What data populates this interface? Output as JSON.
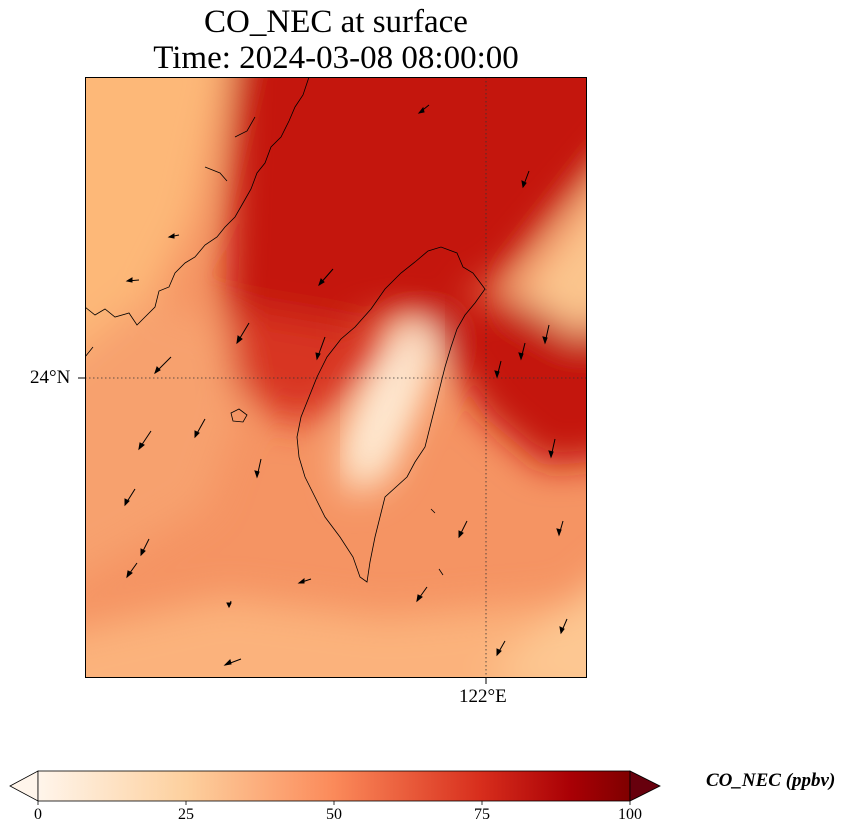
{
  "title_line1": "CO_NEC at surface",
  "title_line2": "Time: 2024-03-08 08:00:00",
  "axes": {
    "lat_label": "24°N",
    "lon_label": "122°E"
  },
  "colorbar": {
    "label": "CO_NEC (ppbv)",
    "ticks": [
      "0",
      "25",
      "50",
      "75",
      "100"
    ],
    "min": 0,
    "max": 100,
    "extend": "both",
    "colormap": [
      "#fff5eb",
      "#fdd8ad",
      "#fdb277",
      "#f4784f",
      "#d9321f",
      "#a50003",
      "#67000d"
    ]
  },
  "colors": {
    "high": "#c0150e",
    "mid": "#f08a5d",
    "low": "#fdc48a",
    "min": "#ffe9d2"
  }
}
